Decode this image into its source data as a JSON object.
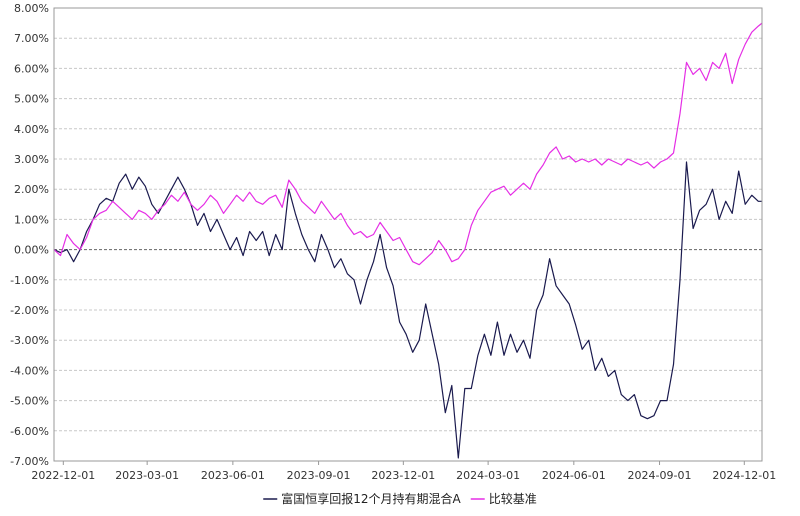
{
  "chart_data": {
    "type": "line",
    "title": "",
    "xlabel": "",
    "ylabel": "",
    "x_start": "2022-11-21",
    "x_end": "2024-12-20",
    "xlim": [
      "2022-11-21",
      "2024-12-20"
    ],
    "ylim": [
      -7.0,
      8.0
    ],
    "y_ticks": [
      -7,
      -6,
      -5,
      -4,
      -3,
      -2,
      -1,
      0,
      1,
      2,
      3,
      4,
      5,
      6,
      7,
      8
    ],
    "y_tick_labels": [
      "-7.00%",
      "-6.00%",
      "-5.00%",
      "-4.00%",
      "-3.00%",
      "-2.00%",
      "-1.00%",
      "0.00%",
      "1.00%",
      "2.00%",
      "3.00%",
      "4.00%",
      "5.00%",
      "6.00%",
      "7.00%",
      "8.00%"
    ],
    "x_tick_labels": [
      {
        "date": "2022-12-01",
        "label": "2022-12-01"
      },
      {
        "date": "2023-03-01",
        "label": "2023-03-01"
      },
      {
        "date": "2023-06-01",
        "label": "2023-06-01"
      },
      {
        "date": "2023-09-01",
        "label": "2023-09-01"
      },
      {
        "date": "2023-12-01",
        "label": "2023-12-01"
      },
      {
        "date": "2024-03-01",
        "label": "2024-03-01"
      },
      {
        "date": "2024-06-01",
        "label": "2024-06-01"
      },
      {
        "date": "2024-09-01",
        "label": "2024-09-01"
      },
      {
        "date": "2024-12-01",
        "label": "2024-12-01"
      }
    ],
    "grid": true,
    "legend_position": "bottom",
    "series": [
      {
        "name": "富国恒享回报12个月持有期混合A",
        "color": "#1a1a4e",
        "points": [
          [
            "2022-11-21",
            0.0
          ],
          [
            "2022-11-28",
            -0.1
          ],
          [
            "2022-12-05",
            0.0
          ],
          [
            "2022-12-12",
            -0.4
          ],
          [
            "2022-12-19",
            0.0
          ],
          [
            "2022-12-26",
            0.6
          ],
          [
            "2023-01-02",
            1.0
          ],
          [
            "2023-01-09",
            1.5
          ],
          [
            "2023-01-16",
            1.7
          ],
          [
            "2023-01-23",
            1.6
          ],
          [
            "2023-01-30",
            2.2
          ],
          [
            "2023-02-06",
            2.5
          ],
          [
            "2023-02-13",
            2.0
          ],
          [
            "2023-02-20",
            2.4
          ],
          [
            "2023-02-27",
            2.1
          ],
          [
            "2023-03-06",
            1.5
          ],
          [
            "2023-03-13",
            1.2
          ],
          [
            "2023-03-20",
            1.6
          ],
          [
            "2023-03-27",
            2.0
          ],
          [
            "2023-04-03",
            2.4
          ],
          [
            "2023-04-10",
            2.0
          ],
          [
            "2023-04-17",
            1.5
          ],
          [
            "2023-04-24",
            0.8
          ],
          [
            "2023-05-01",
            1.2
          ],
          [
            "2023-05-08",
            0.6
          ],
          [
            "2023-05-15",
            1.0
          ],
          [
            "2023-05-22",
            0.5
          ],
          [
            "2023-05-29",
            0.0
          ],
          [
            "2023-06-05",
            0.4
          ],
          [
            "2023-06-12",
            -0.2
          ],
          [
            "2023-06-19",
            0.6
          ],
          [
            "2023-06-26",
            0.3
          ],
          [
            "2023-07-03",
            0.6
          ],
          [
            "2023-07-10",
            -0.2
          ],
          [
            "2023-07-17",
            0.5
          ],
          [
            "2023-07-24",
            0.0
          ],
          [
            "2023-07-31",
            2.0
          ],
          [
            "2023-08-07",
            1.2
          ],
          [
            "2023-08-14",
            0.5
          ],
          [
            "2023-08-21",
            0.0
          ],
          [
            "2023-08-28",
            -0.4
          ],
          [
            "2023-09-04",
            0.5
          ],
          [
            "2023-09-11",
            0.0
          ],
          [
            "2023-09-18",
            -0.6
          ],
          [
            "2023-09-25",
            -0.3
          ],
          [
            "2023-10-02",
            -0.8
          ],
          [
            "2023-10-09",
            -1.0
          ],
          [
            "2023-10-16",
            -1.8
          ],
          [
            "2023-10-23",
            -1.0
          ],
          [
            "2023-10-30",
            -0.4
          ],
          [
            "2023-11-06",
            0.5
          ],
          [
            "2023-11-13",
            -0.6
          ],
          [
            "2023-11-20",
            -1.2
          ],
          [
            "2023-11-27",
            -2.4
          ],
          [
            "2023-12-04",
            -2.8
          ],
          [
            "2023-12-11",
            -3.4
          ],
          [
            "2023-12-18",
            -3.0
          ],
          [
            "2023-12-25",
            -1.8
          ],
          [
            "2024-01-01",
            -2.8
          ],
          [
            "2024-01-08",
            -3.8
          ],
          [
            "2024-01-15",
            -5.4
          ],
          [
            "2024-01-22",
            -4.5
          ],
          [
            "2024-01-29",
            -6.9
          ],
          [
            "2024-02-05",
            -4.6
          ],
          [
            "2024-02-12",
            -4.6
          ],
          [
            "2024-02-19",
            -3.5
          ],
          [
            "2024-02-26",
            -2.8
          ],
          [
            "2024-03-04",
            -3.5
          ],
          [
            "2024-03-11",
            -2.4
          ],
          [
            "2024-03-18",
            -3.5
          ],
          [
            "2024-03-25",
            -2.8
          ],
          [
            "2024-04-01",
            -3.4
          ],
          [
            "2024-04-08",
            -3.0
          ],
          [
            "2024-04-15",
            -3.6
          ],
          [
            "2024-04-22",
            -2.0
          ],
          [
            "2024-04-29",
            -1.5
          ],
          [
            "2024-05-06",
            -0.3
          ],
          [
            "2024-05-13",
            -1.2
          ],
          [
            "2024-05-20",
            -1.5
          ],
          [
            "2024-05-27",
            -1.8
          ],
          [
            "2024-06-03",
            -2.5
          ],
          [
            "2024-06-10",
            -3.3
          ],
          [
            "2024-06-17",
            -3.0
          ],
          [
            "2024-06-24",
            -4.0
          ],
          [
            "2024-07-01",
            -3.6
          ],
          [
            "2024-07-08",
            -4.2
          ],
          [
            "2024-07-15",
            -4.0
          ],
          [
            "2024-07-22",
            -4.8
          ],
          [
            "2024-07-29",
            -5.0
          ],
          [
            "2024-08-05",
            -4.8
          ],
          [
            "2024-08-12",
            -5.5
          ],
          [
            "2024-08-19",
            -5.6
          ],
          [
            "2024-08-26",
            -5.5
          ],
          [
            "2024-09-02",
            -5.0
          ],
          [
            "2024-09-09",
            -5.0
          ],
          [
            "2024-09-16",
            -3.8
          ],
          [
            "2024-09-23",
            -1.0
          ],
          [
            "2024-09-30",
            2.9
          ],
          [
            "2024-10-07",
            0.7
          ],
          [
            "2024-10-14",
            1.3
          ],
          [
            "2024-10-21",
            1.5
          ],
          [
            "2024-10-28",
            2.0
          ],
          [
            "2024-11-04",
            1.0
          ],
          [
            "2024-11-11",
            1.6
          ],
          [
            "2024-11-18",
            1.2
          ],
          [
            "2024-11-25",
            2.6
          ],
          [
            "2024-12-02",
            1.5
          ],
          [
            "2024-12-09",
            1.8
          ],
          [
            "2024-12-16",
            1.6
          ],
          [
            "2024-12-20",
            1.6
          ]
        ]
      },
      {
        "name": "比较基准",
        "color": "#e52ee5",
        "points": [
          [
            "2022-11-21",
            0.0
          ],
          [
            "2022-11-28",
            -0.2
          ],
          [
            "2022-12-05",
            0.5
          ],
          [
            "2022-12-12",
            0.2
          ],
          [
            "2022-12-19",
            0.0
          ],
          [
            "2022-12-26",
            0.4
          ],
          [
            "2023-01-02",
            1.0
          ],
          [
            "2023-01-09",
            1.2
          ],
          [
            "2023-01-16",
            1.3
          ],
          [
            "2023-01-23",
            1.6
          ],
          [
            "2023-01-30",
            1.4
          ],
          [
            "2023-02-06",
            1.2
          ],
          [
            "2023-02-13",
            1.0
          ],
          [
            "2023-02-20",
            1.3
          ],
          [
            "2023-02-27",
            1.2
          ],
          [
            "2023-03-06",
            1.0
          ],
          [
            "2023-03-13",
            1.3
          ],
          [
            "2023-03-20",
            1.5
          ],
          [
            "2023-03-27",
            1.8
          ],
          [
            "2023-04-03",
            1.6
          ],
          [
            "2023-04-10",
            1.9
          ],
          [
            "2023-04-17",
            1.5
          ],
          [
            "2023-04-24",
            1.3
          ],
          [
            "2023-05-01",
            1.5
          ],
          [
            "2023-05-08",
            1.8
          ],
          [
            "2023-05-15",
            1.6
          ],
          [
            "2023-05-22",
            1.2
          ],
          [
            "2023-05-29",
            1.5
          ],
          [
            "2023-06-05",
            1.8
          ],
          [
            "2023-06-12",
            1.6
          ],
          [
            "2023-06-19",
            1.9
          ],
          [
            "2023-06-26",
            1.6
          ],
          [
            "2023-07-03",
            1.5
          ],
          [
            "2023-07-10",
            1.7
          ],
          [
            "2023-07-17",
            1.8
          ],
          [
            "2023-07-24",
            1.4
          ],
          [
            "2023-07-31",
            2.3
          ],
          [
            "2023-08-07",
            2.0
          ],
          [
            "2023-08-14",
            1.6
          ],
          [
            "2023-08-21",
            1.4
          ],
          [
            "2023-08-28",
            1.2
          ],
          [
            "2023-09-04",
            1.6
          ],
          [
            "2023-09-11",
            1.3
          ],
          [
            "2023-09-18",
            1.0
          ],
          [
            "2023-09-25",
            1.2
          ],
          [
            "2023-10-02",
            0.8
          ],
          [
            "2023-10-09",
            0.5
          ],
          [
            "2023-10-16",
            0.6
          ],
          [
            "2023-10-23",
            0.4
          ],
          [
            "2023-10-30",
            0.5
          ],
          [
            "2023-11-06",
            0.9
          ],
          [
            "2023-11-13",
            0.6
          ],
          [
            "2023-11-20",
            0.3
          ],
          [
            "2023-11-27",
            0.4
          ],
          [
            "2023-12-04",
            0.0
          ],
          [
            "2023-12-11",
            -0.4
          ],
          [
            "2023-12-18",
            -0.5
          ],
          [
            "2023-12-25",
            -0.3
          ],
          [
            "2024-01-01",
            -0.1
          ],
          [
            "2024-01-08",
            0.3
          ],
          [
            "2024-01-15",
            0.0
          ],
          [
            "2024-01-22",
            -0.4
          ],
          [
            "2024-01-29",
            -0.3
          ],
          [
            "2024-02-05",
            0.0
          ],
          [
            "2024-02-12",
            0.8
          ],
          [
            "2024-02-19",
            1.3
          ],
          [
            "2024-02-26",
            1.6
          ],
          [
            "2024-03-04",
            1.9
          ],
          [
            "2024-03-11",
            2.0
          ],
          [
            "2024-03-18",
            2.1
          ],
          [
            "2024-03-25",
            1.8
          ],
          [
            "2024-04-01",
            2.0
          ],
          [
            "2024-04-08",
            2.2
          ],
          [
            "2024-04-15",
            2.0
          ],
          [
            "2024-04-22",
            2.5
          ],
          [
            "2024-04-29",
            2.8
          ],
          [
            "2024-05-06",
            3.2
          ],
          [
            "2024-05-13",
            3.4
          ],
          [
            "2024-05-20",
            3.0
          ],
          [
            "2024-05-27",
            3.1
          ],
          [
            "2024-06-03",
            2.9
          ],
          [
            "2024-06-10",
            3.0
          ],
          [
            "2024-06-17",
            2.9
          ],
          [
            "2024-06-24",
            3.0
          ],
          [
            "2024-07-01",
            2.8
          ],
          [
            "2024-07-08",
            3.0
          ],
          [
            "2024-07-15",
            2.9
          ],
          [
            "2024-07-22",
            2.8
          ],
          [
            "2024-07-29",
            3.0
          ],
          [
            "2024-08-05",
            2.9
          ],
          [
            "2024-08-12",
            2.8
          ],
          [
            "2024-08-19",
            2.9
          ],
          [
            "2024-08-26",
            2.7
          ],
          [
            "2024-09-02",
            2.9
          ],
          [
            "2024-09-09",
            3.0
          ],
          [
            "2024-09-16",
            3.2
          ],
          [
            "2024-09-23",
            4.5
          ],
          [
            "2024-09-30",
            6.2
          ],
          [
            "2024-10-07",
            5.8
          ],
          [
            "2024-10-14",
            6.0
          ],
          [
            "2024-10-21",
            5.6
          ],
          [
            "2024-10-28",
            6.2
          ],
          [
            "2024-11-04",
            6.0
          ],
          [
            "2024-11-11",
            6.5
          ],
          [
            "2024-11-18",
            5.5
          ],
          [
            "2024-11-25",
            6.3
          ],
          [
            "2024-12-02",
            6.8
          ],
          [
            "2024-12-09",
            7.2
          ],
          [
            "2024-12-16",
            7.4
          ],
          [
            "2024-12-20",
            7.5
          ]
        ]
      }
    ]
  },
  "axis_colors": {
    "grid": "#c8c8c8",
    "zero_line": "#666666",
    "frame": "#999999",
    "tick_text": "#333333"
  }
}
